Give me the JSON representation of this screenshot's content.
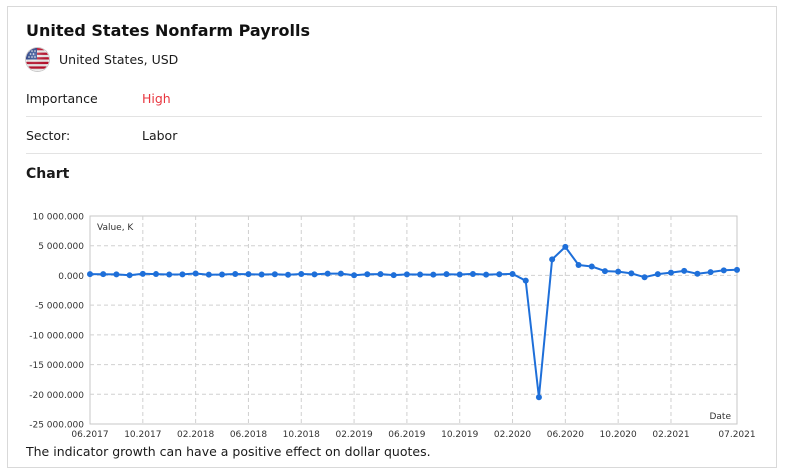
{
  "indicator": {
    "title": "United States Nonfarm Payrolls",
    "country_label": "United States, USD",
    "flag_icon": "us-flag-icon"
  },
  "details": [
    {
      "label": "Importance",
      "value": "High",
      "value_color": "#e8363f"
    },
    {
      "label": "Sector:",
      "value": "Labor"
    }
  ],
  "chart_heading": "Chart",
  "footnote": "The indicator growth can have a positive effect on dollar quotes.",
  "chart_data": {
    "type": "line",
    "ylabel": "Value, K",
    "xlabel": "Date",
    "ylim": [
      -25000000,
      10000000
    ],
    "y_ticks": [
      10000000,
      5000000,
      0,
      -5000000,
      -10000000,
      -15000000,
      -20000000,
      -25000000
    ],
    "y_tick_labels": [
      "10 000.000",
      "5 000.000",
      "0.000",
      "-5 000.000",
      "-10 000.000",
      "-15 000.000",
      "-20 000.000",
      "-25 000.000"
    ],
    "x_tick_labels": [
      "06.2017",
      "10.2017",
      "02.2018",
      "06.2018",
      "10.2018",
      "02.2019",
      "06.2019",
      "10.2019",
      "02.2020",
      "06.2020",
      "10.2020",
      "02.2021",
      "07.2021"
    ],
    "grid": true,
    "line_color": "#1e6fd9",
    "series": [
      {
        "x": [
          "06.2017",
          "07.2017",
          "08.2017",
          "09.2017",
          "10.2017",
          "11.2017",
          "12.2017",
          "01.2018",
          "02.2018",
          "03.2018",
          "04.2018",
          "05.2018",
          "06.2018",
          "07.2018",
          "08.2018",
          "09.2018",
          "10.2018",
          "11.2018",
          "12.2018",
          "01.2019",
          "02.2019",
          "03.2019",
          "04.2019",
          "05.2019",
          "06.2019",
          "07.2019",
          "08.2019",
          "09.2019",
          "10.2019",
          "11.2019",
          "12.2019",
          "01.2020",
          "02.2020",
          "03.2020",
          "04.2020",
          "05.2020",
          "06.2020",
          "07.2020",
          "08.2020",
          "09.2020",
          "10.2020",
          "11.2020",
          "12.2020",
          "01.2021",
          "02.2021",
          "03.2021",
          "04.2021",
          "05.2021",
          "06.2021",
          "07.2021"
        ],
        "values": [
          220000,
          210000,
          180000,
          40000,
          270000,
          230000,
          160000,
          180000,
          330000,
          130000,
          160000,
          240000,
          210000,
          150000,
          200000,
          120000,
          240000,
          180000,
          310000,
          300000,
          30000,
          190000,
          220000,
          60000,
          180000,
          160000,
          130000,
          210000,
          150000,
          250000,
          140000,
          200000,
          250000,
          -880000,
          -20500000,
          2700000,
          4800000,
          1760000,
          1500000,
          720000,
          640000,
          340000,
          -300000,
          220000,
          470000,
          770000,
          280000,
          560000,
          860000,
          940000
        ]
      }
    ]
  }
}
